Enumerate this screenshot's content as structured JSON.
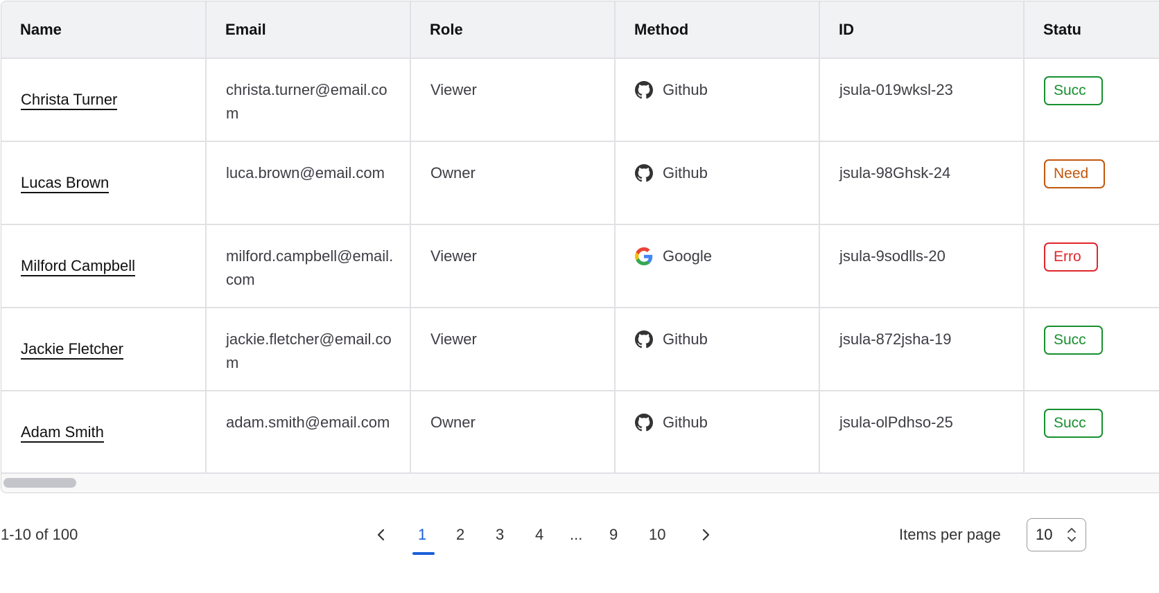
{
  "table": {
    "headers": [
      "Name",
      "Email",
      "Role",
      "Method",
      "ID",
      "Statu"
    ],
    "rows": [
      {
        "name": "Christa Turner",
        "email": "christa.turner@email.com",
        "role": "Viewer",
        "method": "Github",
        "method_icon": "github-icon",
        "id": "jsula-019wksl-23",
        "status": "Succ",
        "status_color": "#17902f"
      },
      {
        "name": "Lucas Brown",
        "email": "luca.brown@email.com",
        "role": "Owner",
        "method": "Github",
        "method_icon": "github-icon",
        "id": "jsula-98Ghsk-24",
        "status": "Need",
        "status_color": "#c2570c"
      },
      {
        "name": "Milford Campbell",
        "email": "milford.campbell@email.com",
        "role": "Viewer",
        "method": "Google",
        "method_icon": "google-icon",
        "id": "jsula-9sodlls-20",
        "status": "Erro",
        "status_color": "#e0262b"
      },
      {
        "name": "Jackie Fletcher",
        "email": "jackie.fletcher@email.com",
        "role": "Viewer",
        "method": "Github",
        "method_icon": "github-icon",
        "id": "jsula-872jsha-19",
        "status": "Succ",
        "status_color": "#17902f"
      },
      {
        "name": "Adam Smith",
        "email": "adam.smith@email.com",
        "role": "Owner",
        "method": "Github",
        "method_icon": "github-icon",
        "id": "jsula-olPdhso-25",
        "status": "Succ",
        "status_color": "#17902f"
      }
    ]
  },
  "pagination": {
    "range": "1-10 of 100",
    "pages": [
      "1",
      "2",
      "3",
      "4",
      "...",
      "9",
      "10"
    ],
    "current": "1",
    "accent": "#1a5fd9",
    "items_per_page_label": "Items per page",
    "items_per_page": "10"
  }
}
